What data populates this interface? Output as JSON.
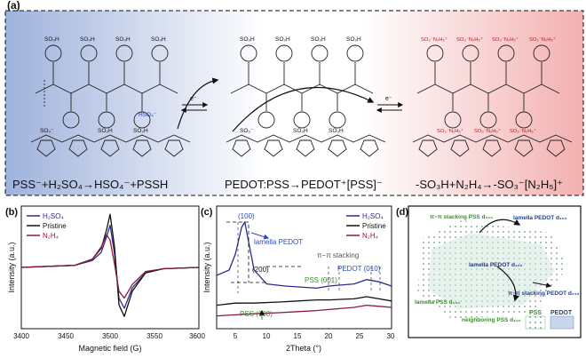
{
  "panel_a": {
    "label": "(a)",
    "equations": {
      "left": "PSS⁻+H₂SO₄→HSO₄⁻+PSSH",
      "middle": "PEDOT:PSS→PEDOT⁺[PSS]⁻",
      "right": "-SO₃H+N₂H₄→-SO₃⁻[N₂H₅]⁺"
    },
    "groups": {
      "so3h": "SO₃H",
      "so3": "SO₃⁻",
      "so3_n2h5": "SO₃⁻N₂H₅⁺",
      "hso4": "HSO₄⁻",
      "electron": "e⁻",
      "s": "S"
    },
    "colors": {
      "left_bg": "#9fb2dc",
      "right_bg": "#f3b0b0",
      "accent_blue": "#1f3fbf",
      "accent_red": "#d11a1a"
    }
  },
  "panel_b": {
    "label": "(b)",
    "xlabel": "Magnetic field (G)",
    "ylabel": "Intensity (a.u.)",
    "xticks": [
      "3400",
      "3450",
      "3500",
      "3550",
      "3600"
    ],
    "legend": [
      "H₂SO₄",
      "Pristine",
      "N₂H₄"
    ]
  },
  "panel_c": {
    "label": "(c)",
    "xlabel": "2Theta (°)",
    "ylabel": "Intensity (a.u.)",
    "xticks": [
      "5",
      "10",
      "15",
      "20",
      "25",
      "30"
    ],
    "legend": [
      "H₂SO₄",
      "Pristine",
      "N₂H₄"
    ],
    "annotations": {
      "p100": "(100)",
      "lamella": "lamella  PEDOT",
      "p200": "(200)",
      "pipi": "π−π stacking",
      "pedot010": "PEDOT (010)",
      "pss001": "PSS (001)",
      "pss100": "PSS (100)"
    }
  },
  "panel_d": {
    "label": "(d)",
    "annotations": {
      "pipi_pss": "π−π stacking PSS d₀₁₀",
      "lamella_top": "lamella PEDOT d₁₀₀",
      "lamella_mid": "lamella PEDOT d₁₀₀",
      "pipi_pedot": "π−π stacking PEDOT d₀₁₀",
      "lamella_pss": "lamella PSS d₁₀₀",
      "neighboring": "neighboring PSS d₁₀₀",
      "legend_pss": "PSS",
      "legend_pedot": "PEDOT"
    }
  },
  "chart_data": [
    {
      "type": "line",
      "title": "",
      "xlabel": "Magnetic field (G)",
      "ylabel": "Intensity (a.u.)",
      "xlim": [
        3400,
        3600
      ],
      "series": [
        {
          "name": "H₂SO₄",
          "color": "#2b2b8f",
          "x": [
            3400,
            3460,
            3480,
            3490,
            3496,
            3500,
            3505,
            3510,
            3516,
            3525,
            3540,
            3560,
            3600
          ],
          "y": [
            0.0,
            0.03,
            0.1,
            0.22,
            0.45,
            0.62,
            0.2,
            -0.45,
            -0.6,
            -0.3,
            -0.08,
            -0.02,
            0.0
          ]
        },
        {
          "name": "Pristine",
          "color": "#111111",
          "x": [
            3400,
            3460,
            3480,
            3490,
            3496,
            3500,
            3505,
            3510,
            3516,
            3525,
            3540,
            3560,
            3600
          ],
          "y": [
            0.0,
            0.03,
            0.12,
            0.28,
            0.55,
            0.78,
            0.3,
            -0.55,
            -0.72,
            -0.35,
            -0.08,
            -0.02,
            0.0
          ]
        },
        {
          "name": "N₂H₄",
          "color": "#8b1a3a",
          "x": [
            3400,
            3460,
            3480,
            3490,
            3496,
            3500,
            3505,
            3510,
            3516,
            3525,
            3540,
            3560,
            3600
          ],
          "y": [
            0.0,
            0.03,
            0.12,
            0.3,
            0.48,
            0.4,
            0.05,
            -0.35,
            -0.45,
            -0.25,
            -0.06,
            -0.02,
            0.0
          ]
        }
      ]
    },
    {
      "type": "line",
      "title": "",
      "xlabel": "2Theta (°)",
      "ylabel": "Intensity (a.u.)",
      "xlim": [
        2,
        30
      ],
      "series": [
        {
          "name": "H₂SO₄",
          "color": "#2b2b8f",
          "x": [
            2,
            4,
            5,
            6,
            6.5,
            7,
            8,
            10,
            13,
            18,
            20,
            24,
            26,
            28,
            30
          ],
          "y": [
            0.5,
            0.55,
            0.7,
            0.95,
            1.0,
            0.85,
            0.55,
            0.42,
            0.4,
            0.38,
            0.4,
            0.42,
            0.46,
            0.44,
            0.4
          ]
        },
        {
          "name": "Pristine",
          "color": "#111111",
          "x": [
            2,
            5,
            8,
            12,
            15,
            18,
            20,
            24,
            26,
            28,
            30
          ],
          "y": [
            0.22,
            0.24,
            0.24,
            0.25,
            0.26,
            0.27,
            0.27,
            0.28,
            0.3,
            0.28,
            0.26
          ]
        },
        {
          "name": "N₂H₄",
          "color": "#8b1a3a",
          "x": [
            2,
            5,
            8,
            12,
            15,
            18,
            20,
            24,
            26,
            28,
            30
          ],
          "y": [
            0.12,
            0.13,
            0.14,
            0.15,
            0.16,
            0.17,
            0.18,
            0.2,
            0.22,
            0.21,
            0.2
          ]
        }
      ]
    }
  ]
}
